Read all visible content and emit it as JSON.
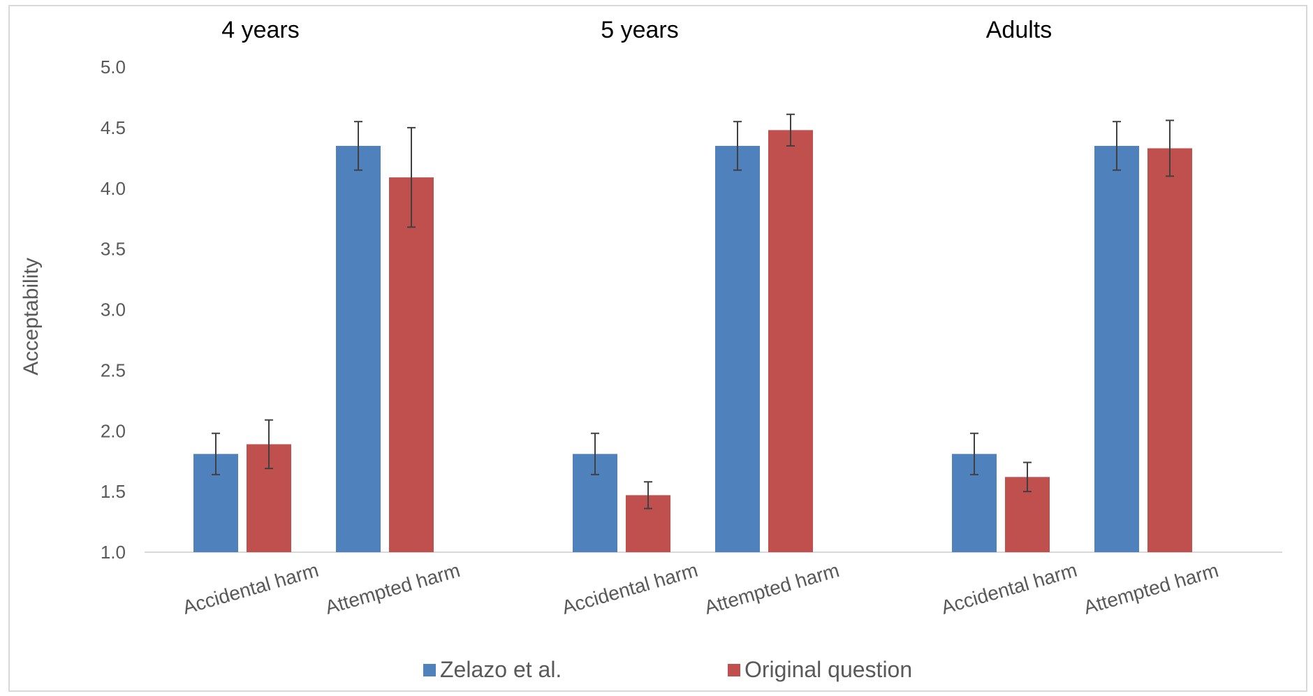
{
  "chart_data": {
    "type": "bar",
    "ylabel": "Acceptability",
    "ylim": [
      1.0,
      5.0
    ],
    "yticks": [
      "1.0",
      "1.5",
      "2.0",
      "2.5",
      "3.0",
      "3.5",
      "4.0",
      "4.5",
      "5.0"
    ],
    "grid": false,
    "legend_placement": "bottom",
    "groups": [
      {
        "title": "4 years",
        "categories": [
          "Accidental harm",
          "Attempted harm"
        ],
        "series": [
          {
            "name": "Zelazo et al.",
            "values": [
              1.81,
              4.35
            ],
            "errors": [
              0.17,
              0.2
            ]
          },
          {
            "name": "Original question",
            "values": [
              1.89,
              4.09
            ],
            "errors": [
              0.2,
              0.41
            ]
          }
        ]
      },
      {
        "title": "5 years",
        "categories": [
          "Accidental harm",
          "Attempted harm"
        ],
        "series": [
          {
            "name": "Zelazo et al.",
            "values": [
              1.81,
              4.35
            ],
            "errors": [
              0.17,
              0.2
            ]
          },
          {
            "name": "Original question",
            "values": [
              1.47,
              4.48
            ],
            "errors": [
              0.11,
              0.13
            ]
          }
        ]
      },
      {
        "title": "Adults",
        "categories": [
          "Accidental harm",
          "Attempted harm"
        ],
        "series": [
          {
            "name": "Zelazo et al.",
            "values": [
              1.81,
              4.35
            ],
            "errors": [
              0.17,
              0.2
            ]
          },
          {
            "name": "Original question",
            "values": [
              1.62,
              4.33
            ],
            "errors": [
              0.12,
              0.23
            ]
          }
        ]
      }
    ],
    "legend": [
      {
        "name": "Zelazo et al.",
        "color": "#4F81BD"
      },
      {
        "name": "Original question",
        "color": "#C0504D"
      }
    ]
  }
}
